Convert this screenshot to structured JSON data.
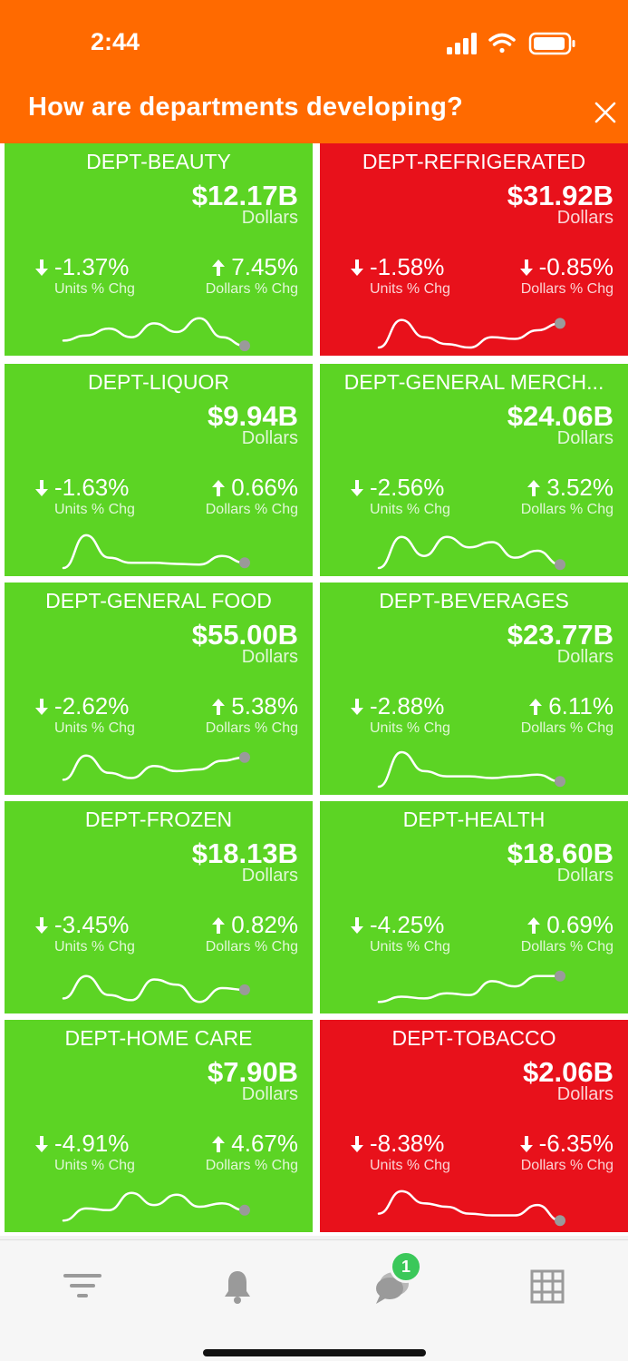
{
  "status_bar": {
    "time": "2:44"
  },
  "header": {
    "title": "How are departments developing?"
  },
  "labels": {
    "unit": "Dollars",
    "units_chg": "Units % Chg",
    "dollars_chg": "Dollars % Chg"
  },
  "colors": {
    "header": "#ff6a00",
    "positive": "#5cd424",
    "negative": "#e8111b",
    "badge": "#3bc85a"
  },
  "tiles": [
    {
      "name": "DEPT-BEAUTY",
      "value": "$12.17B",
      "status": "positive",
      "units_chg": "-1.37%",
      "units_dir": "down",
      "dollars_chg": "7.45%",
      "dollars_dir": "up",
      "trend": [
        0.2,
        0.35,
        0.55,
        0.3,
        0.7,
        0.45,
        0.85,
        0.3,
        0.05
      ]
    },
    {
      "name": "DEPT-REFRIGERATED",
      "value": "$31.92B",
      "status": "negative",
      "units_chg": "-1.58%",
      "units_dir": "down",
      "dollars_chg": "-0.85%",
      "dollars_dir": "down",
      "trend": [
        0.0,
        0.8,
        0.3,
        0.1,
        0.0,
        0.3,
        0.25,
        0.5,
        0.7
      ]
    },
    {
      "name": "DEPT-LIQUOR",
      "value": "$9.94B",
      "status": "positive",
      "units_chg": "-1.63%",
      "units_dir": "down",
      "dollars_chg": "0.66%",
      "dollars_dir": "up",
      "trend": [
        0.0,
        0.95,
        0.3,
        0.15,
        0.15,
        0.12,
        0.1,
        0.35,
        0.15
      ]
    },
    {
      "name": "DEPT-GENERAL MERCH...",
      "value": "$24.06B",
      "status": "positive",
      "units_chg": "-2.56%",
      "units_dir": "down",
      "dollars_chg": "3.52%",
      "dollars_dir": "up",
      "trend": [
        0.0,
        0.9,
        0.35,
        0.9,
        0.6,
        0.75,
        0.3,
        0.5,
        0.1
      ]
    },
    {
      "name": "DEPT-GENERAL FOOD",
      "value": "$55.00B",
      "status": "positive",
      "units_chg": "-2.62%",
      "units_dir": "down",
      "dollars_chg": "5.38%",
      "dollars_dir": "up",
      "trend": [
        0.2,
        0.9,
        0.4,
        0.25,
        0.6,
        0.45,
        0.5,
        0.75,
        0.85
      ]
    },
    {
      "name": "DEPT-BEVERAGES",
      "value": "$23.77B",
      "status": "positive",
      "units_chg": "-2.88%",
      "units_dir": "down",
      "dollars_chg": "6.11%",
      "dollars_dir": "up",
      "trend": [
        0.0,
        1.0,
        0.45,
        0.3,
        0.3,
        0.25,
        0.3,
        0.35,
        0.15
      ]
    },
    {
      "name": "DEPT-FROZEN",
      "value": "$18.13B",
      "status": "positive",
      "units_chg": "-3.45%",
      "units_dir": "down",
      "dollars_chg": "0.82%",
      "dollars_dir": "up",
      "trend": [
        0.2,
        0.85,
        0.3,
        0.15,
        0.75,
        0.6,
        0.1,
        0.5,
        0.45
      ]
    },
    {
      "name": "DEPT-HEALTH",
      "value": "$18.60B",
      "status": "positive",
      "units_chg": "-4.25%",
      "units_dir": "down",
      "dollars_chg": "0.69%",
      "dollars_dir": "up",
      "trend": [
        0.1,
        0.25,
        0.2,
        0.35,
        0.3,
        0.7,
        0.55,
        0.85,
        0.85
      ]
    },
    {
      "name": "DEPT-HOME CARE",
      "value": "$7.90B",
      "status": "positive",
      "units_chg": "-4.91%",
      "units_dir": "down",
      "dollars_chg": "4.67%",
      "dollars_dir": "up",
      "trend": [
        0.1,
        0.45,
        0.4,
        0.9,
        0.55,
        0.85,
        0.5,
        0.6,
        0.4
      ]
    },
    {
      "name": "DEPT-TOBACCO",
      "value": "$2.06B",
      "status": "negative",
      "units_chg": "-8.38%",
      "units_dir": "down",
      "dollars_chg": "-6.35%",
      "dollars_dir": "down",
      "trend": [
        0.3,
        0.95,
        0.6,
        0.5,
        0.3,
        0.25,
        0.25,
        0.55,
        0.1
      ]
    }
  ],
  "tabbar": {
    "items": [
      {
        "icon": "filter-icon"
      },
      {
        "icon": "bell-icon"
      },
      {
        "icon": "chat-icon",
        "badge": "1"
      },
      {
        "icon": "grid-icon"
      }
    ]
  }
}
